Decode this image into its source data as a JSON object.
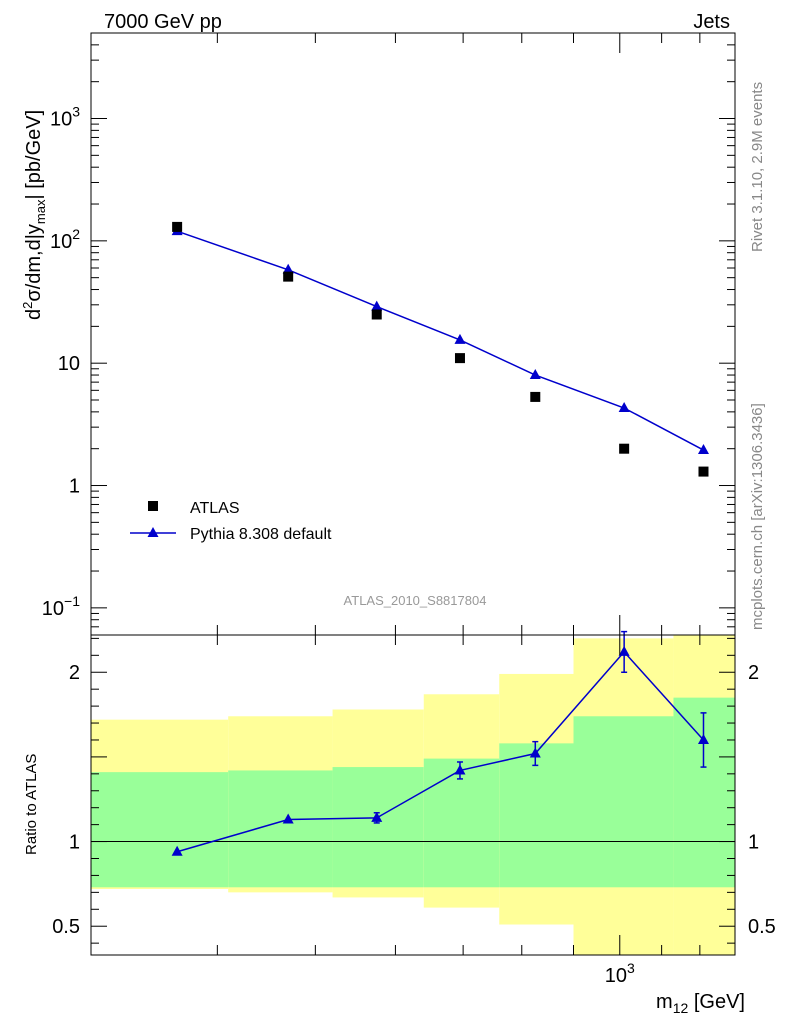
{
  "header": {
    "beam": "7000 GeV pp",
    "process": "Jets",
    "side_top": "Rivet 3.1.10,  2.9M events",
    "side_bottom": "mcplots.cern.ch [arXiv:1306.3436]",
    "analysis": "ATLAS_2010_S8817804"
  },
  "colors": {
    "data": "#000000",
    "mc": "#0000cc",
    "band_inner": "#99ff99",
    "band_outer": "#ffff99"
  },
  "chart_data": [
    {
      "type": "scatter",
      "title": "",
      "xlabel": "m_12 [GeV]",
      "ylabel": "d²σ/dm,d|y_max| [pb/GeV]",
      "yscale": "log",
      "xscale": "log",
      "xlim": [
        300,
        1300
      ],
      "ylim": [
        0.06,
        5000
      ],
      "y_ticks": [
        {
          "value": 0.1,
          "label": "10",
          "sup": "−1"
        },
        {
          "value": 1,
          "label": "1",
          "sup": ""
        },
        {
          "value": 10,
          "label": "10",
          "sup": ""
        },
        {
          "value": 100,
          "label": "10",
          "sup": "2"
        },
        {
          "value": 1000,
          "label": "10",
          "sup": "3"
        }
      ],
      "x_ticks": [
        {
          "value": 1000,
          "label": "10",
          "sup": "3"
        }
      ],
      "legend_position": "bottom-left",
      "series": [
        {
          "name": "ATLAS",
          "marker": "square",
          "x": [
            365,
            470,
            575,
            695,
            825,
            1010,
            1210
          ],
          "y": [
            130,
            51,
            25,
            11,
            5.3,
            2.0,
            1.3
          ]
        },
        {
          "name": "Pythia 8.308 default",
          "marker": "triangle",
          "line": true,
          "x": [
            365,
            470,
            575,
            695,
            825,
            1010,
            1210
          ],
          "y": [
            120,
            58,
            29,
            15.5,
            8.0,
            4.3,
            1.95
          ]
        }
      ]
    },
    {
      "type": "line",
      "ylabel": "Ratio to ATLAS",
      "xscale": "log",
      "xlim": [
        300,
        1300
      ],
      "ylim": [
        0.33,
        2.22
      ],
      "y_ticks": [
        {
          "value": 0.5,
          "label": "0.5"
        },
        {
          "value": 1,
          "label": "1"
        },
        {
          "value": 2,
          "label": "2"
        }
      ],
      "reference_line": 1,
      "bands": {
        "edges": [
          300,
          410,
          520,
          640,
          760,
          900,
          1130,
          1300
        ],
        "inner_low": [
          0.73,
          0.73,
          0.73,
          0.73,
          0.73,
          0.73,
          0.73
        ],
        "inner_high": [
          1.41,
          1.42,
          1.44,
          1.49,
          1.58,
          1.74,
          1.85
        ],
        "outer_low": [
          0.72,
          0.7,
          0.67,
          0.61,
          0.51,
          0.31,
          0.31
        ],
        "outer_high": [
          1.72,
          1.74,
          1.78,
          1.87,
          1.99,
          2.2,
          2.3
        ]
      },
      "series": [
        {
          "name": "Pythia 8.308 default",
          "x": [
            365,
            470,
            575,
            695,
            825,
            1010,
            1210
          ],
          "y": [
            0.94,
            1.13,
            1.14,
            1.42,
            1.52,
            2.12,
            1.6
          ],
          "yerr": [
            0,
            0,
            0.03,
            0.05,
            0.07,
            0.12,
            0.16
          ]
        }
      ]
    }
  ]
}
